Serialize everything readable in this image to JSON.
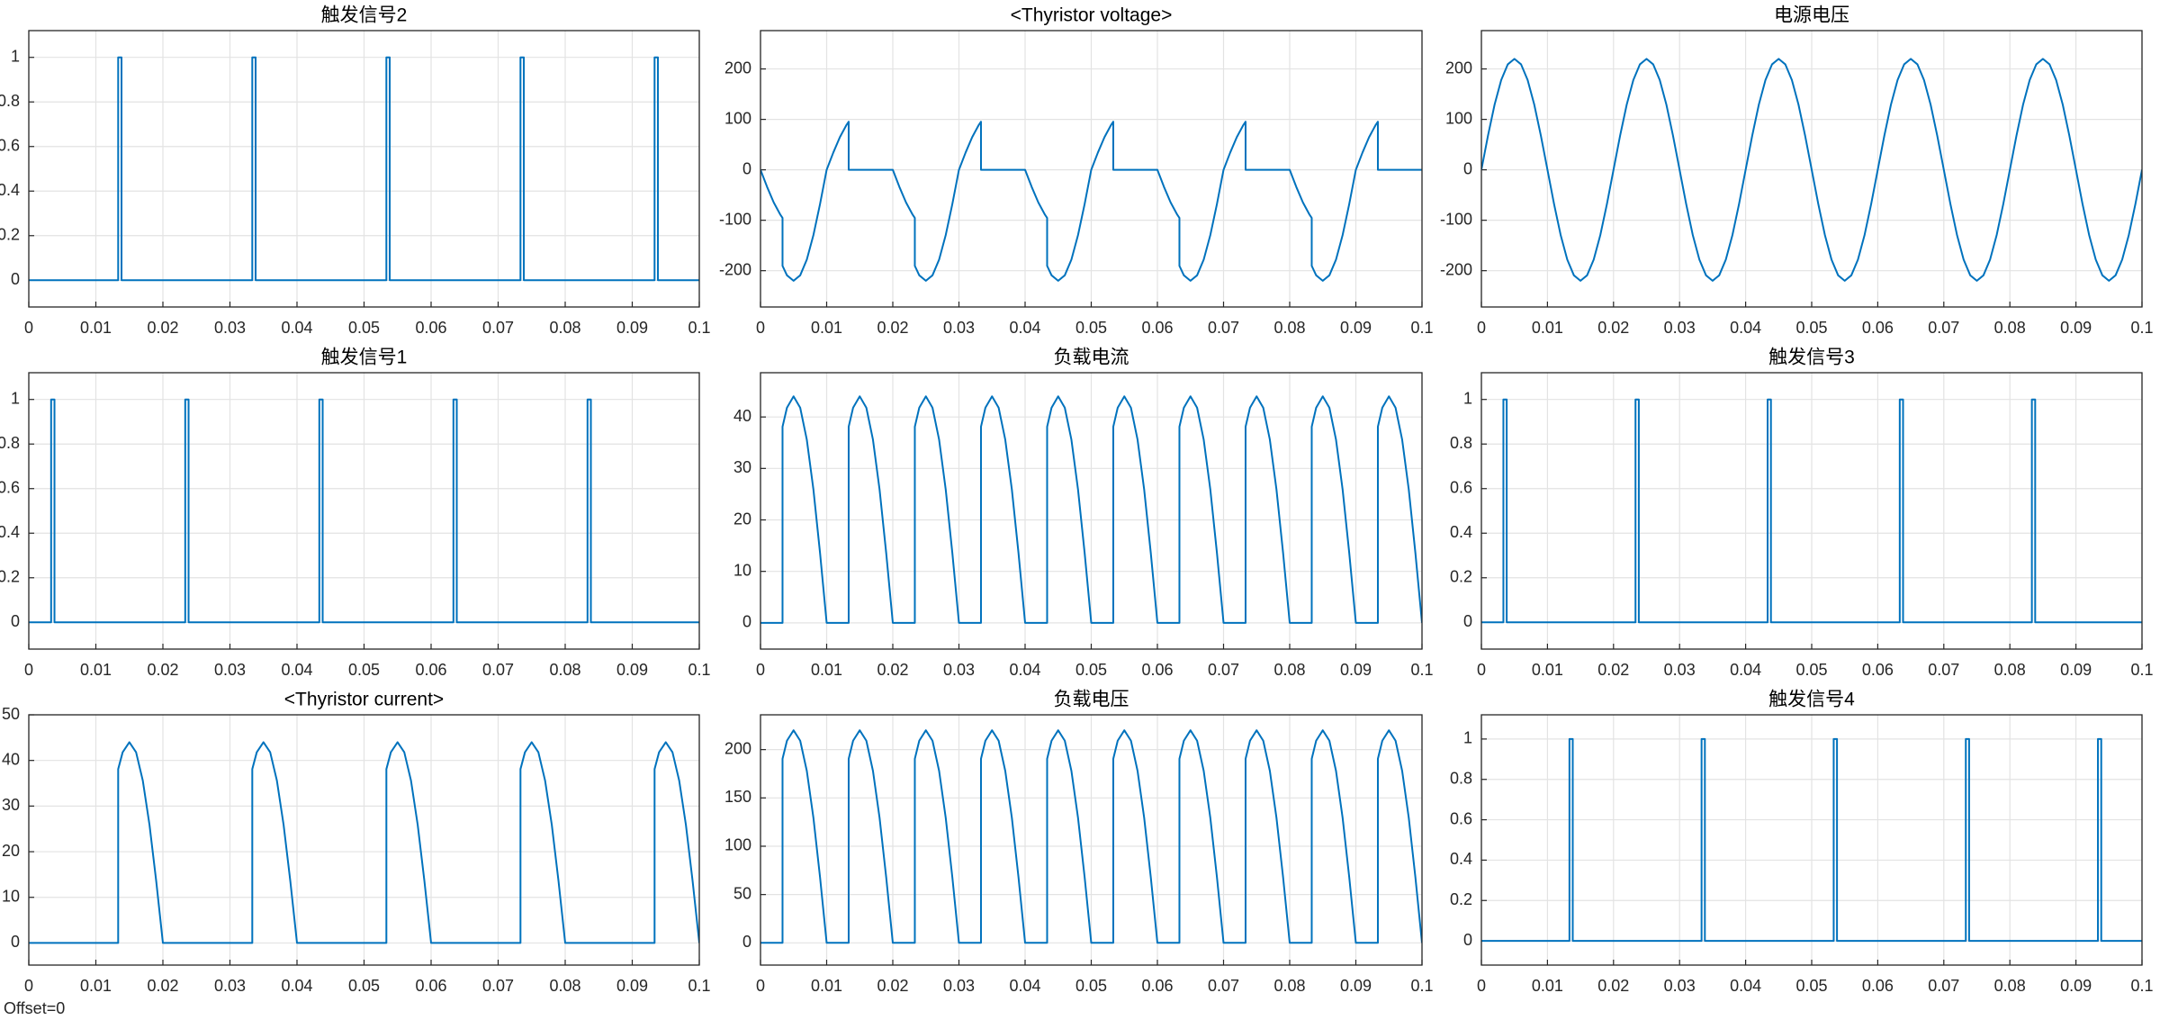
{
  "chart_data": [
    {
      "type": "line",
      "title": "触发信号2",
      "x": [
        0,
        0.01333,
        0.01333,
        0.01383,
        0.01383,
        0.03333,
        0.03333,
        0.03383,
        0.03383,
        0.05333,
        0.05333,
        0.05383,
        0.05383,
        0.07333,
        0.07333,
        0.07383,
        0.07383,
        0.09333,
        0.09333,
        0.09383,
        0.09383,
        0.1
      ],
      "values": [
        0,
        0,
        1,
        1,
        0,
        0,
        1,
        1,
        0,
        0,
        1,
        1,
        0,
        0,
        1,
        1,
        0,
        0,
        1,
        1,
        0,
        0
      ],
      "color": "#0072BD",
      "xlim": [
        0,
        0.1
      ],
      "xticks": [
        0,
        0.01,
        0.02,
        0.03,
        0.04,
        0.05,
        0.06,
        0.07,
        0.08,
        0.09,
        0.1
      ],
      "ylim": [
        -0.12,
        1.12
      ],
      "yticks": [
        0,
        0.2,
        0.4,
        0.6,
        0.8,
        1
      ],
      "grid": true
    },
    {
      "type": "line",
      "title": "<Thyristor voltage>",
      "x": [
        0,
        0.001,
        0.002,
        0.003,
        0.00333,
        0.00333,
        0.004,
        0.005,
        0.006,
        0.007,
        0.008,
        0.009,
        0.01,
        0.011,
        0.012,
        0.013,
        0.01333,
        0.01333,
        0.02,
        0.021,
        0.022,
        0.023,
        0.02333,
        0.02333,
        0.024,
        0.025,
        0.026,
        0.027,
        0.028,
        0.029,
        0.03,
        0.031,
        0.032,
        0.033,
        0.03333,
        0.03333,
        0.04,
        0.041,
        0.042,
        0.043,
        0.04333,
        0.04333,
        0.044,
        0.045,
        0.046,
        0.047,
        0.048,
        0.049,
        0.05,
        0.051,
        0.052,
        0.053,
        0.05333,
        0.05333,
        0.06,
        0.061,
        0.062,
        0.063,
        0.06333,
        0.06333,
        0.064,
        0.065,
        0.066,
        0.067,
        0.068,
        0.069,
        0.07,
        0.071,
        0.072,
        0.073,
        0.07333,
        0.07333,
        0.08,
        0.081,
        0.082,
        0.083,
        0.08333,
        0.08333,
        0.084,
        0.085,
        0.086,
        0.087,
        0.088,
        0.089,
        0.09,
        0.091,
        0.092,
        0.093,
        0.09333,
        0.09333,
        0.1
      ],
      "values": [
        0,
        -34,
        -64.7,
        -89,
        -95.3,
        -190.5,
        -209.2,
        -220,
        -209.2,
        -178,
        -129.4,
        -68,
        0,
        34,
        64.7,
        89,
        95.3,
        0,
        0,
        -34,
        -64.7,
        -89,
        -95.3,
        -190.5,
        -209.2,
        -220,
        -209.2,
        -178,
        -129.4,
        -68,
        0,
        34,
        64.7,
        89,
        95.3,
        0,
        0,
        -34,
        -64.7,
        -89,
        -95.3,
        -190.5,
        -209.2,
        -220,
        -209.2,
        -178,
        -129.4,
        -68,
        0,
        34,
        64.7,
        89,
        95.3,
        0,
        0,
        -34,
        -64.7,
        -89,
        -95.3,
        -190.5,
        -209.2,
        -220,
        -209.2,
        -178,
        -129.4,
        -68,
        0,
        34,
        64.7,
        89,
        95.3,
        0,
        0,
        -34,
        -64.7,
        -89,
        -95.3,
        -190.5,
        -209.2,
        -220,
        -209.2,
        -178,
        -129.4,
        -68,
        0,
        34,
        64.7,
        89,
        95.3,
        0,
        0
      ],
      "color": "#0072BD",
      "xlim": [
        0,
        0.1
      ],
      "xticks": [
        0,
        0.01,
        0.02,
        0.03,
        0.04,
        0.05,
        0.06,
        0.07,
        0.08,
        0.09,
        0.1
      ],
      "ylim": [
        -272,
        276
      ],
      "yticks": [
        -200,
        -100,
        0,
        100,
        200
      ],
      "grid": true
    },
    {
      "type": "line",
      "title": "电源电压",
      "x": [
        0,
        0.001,
        0.002,
        0.003,
        0.004,
        0.005,
        0.006,
        0.007,
        0.008,
        0.009,
        0.01,
        0.011,
        0.012,
        0.013,
        0.014,
        0.015,
        0.016,
        0.017,
        0.018,
        0.019,
        0.02,
        0.021,
        0.022,
        0.023,
        0.024,
        0.025,
        0.026,
        0.027,
        0.028,
        0.029,
        0.03,
        0.031,
        0.032,
        0.033,
        0.034,
        0.035,
        0.036,
        0.037,
        0.038,
        0.039,
        0.04,
        0.041,
        0.042,
        0.043,
        0.044,
        0.045,
        0.046,
        0.047,
        0.048,
        0.049,
        0.05,
        0.051,
        0.052,
        0.053,
        0.054,
        0.055,
        0.056,
        0.057,
        0.058,
        0.059,
        0.06,
        0.061,
        0.062,
        0.063,
        0.064,
        0.065,
        0.066,
        0.067,
        0.068,
        0.069,
        0.07,
        0.071,
        0.072,
        0.073,
        0.074,
        0.075,
        0.076,
        0.077,
        0.078,
        0.079,
        0.08,
        0.081,
        0.082,
        0.083,
        0.084,
        0.085,
        0.086,
        0.087,
        0.088,
        0.089,
        0.09,
        0.091,
        0.092,
        0.093,
        0.094,
        0.095,
        0.096,
        0.097,
        0.098,
        0.099,
        0.1
      ],
      "values": [
        0,
        68,
        129.4,
        178,
        209.2,
        220,
        209.2,
        178,
        129.4,
        68,
        0,
        -68,
        -129.4,
        -178,
        -209.2,
        -220,
        -209.2,
        -178,
        -129.4,
        -68,
        0,
        68,
        129.4,
        178,
        209.2,
        220,
        209.2,
        178,
        129.4,
        68,
        0,
        -68,
        -129.4,
        -178,
        -209.2,
        -220,
        -209.2,
        -178,
        -129.4,
        -68,
        0,
        68,
        129.4,
        178,
        209.2,
        220,
        209.2,
        178,
        129.4,
        68,
        0,
        -68,
        -129.4,
        -178,
        -209.2,
        -220,
        -209.2,
        -178,
        -129.4,
        -68,
        0,
        68,
        129.4,
        178,
        209.2,
        220,
        209.2,
        178,
        129.4,
        68,
        0,
        -68,
        -129.4,
        -178,
        -209.2,
        -220,
        -209.2,
        -178,
        -129.4,
        -68,
        0,
        68,
        129.4,
        178,
        209.2,
        220,
        209.2,
        178,
        129.4,
        68,
        0,
        -68,
        -129.4,
        -178,
        -209.2,
        -220,
        -209.2,
        -178,
        -129.4,
        -68,
        0
      ],
      "color": "#0072BD",
      "xlim": [
        0,
        0.1
      ],
      "xticks": [
        0,
        0.01,
        0.02,
        0.03,
        0.04,
        0.05,
        0.06,
        0.07,
        0.08,
        0.09,
        0.1
      ],
      "ylim": [
        -272,
        276
      ],
      "yticks": [
        -200,
        -100,
        0,
        100,
        200
      ],
      "grid": true
    },
    {
      "type": "line",
      "title": "触发信号1",
      "x": [
        0,
        0.00333,
        0.00333,
        0.00383,
        0.00383,
        0.02333,
        0.02333,
        0.02383,
        0.02383,
        0.04333,
        0.04333,
        0.04383,
        0.04383,
        0.06333,
        0.06333,
        0.06383,
        0.06383,
        0.08333,
        0.08333,
        0.08383,
        0.08383,
        0.1
      ],
      "values": [
        0,
        0,
        1,
        1,
        0,
        0,
        1,
        1,
        0,
        0,
        1,
        1,
        0,
        0,
        1,
        1,
        0,
        0,
        1,
        1,
        0,
        0
      ],
      "color": "#0072BD",
      "xlim": [
        0,
        0.1
      ],
      "xticks": [
        0,
        0.01,
        0.02,
        0.03,
        0.04,
        0.05,
        0.06,
        0.07,
        0.08,
        0.09,
        0.1
      ],
      "ylim": [
        -0.12,
        1.12
      ],
      "yticks": [
        0,
        0.2,
        0.4,
        0.6,
        0.8,
        1
      ],
      "grid": true
    },
    {
      "type": "line",
      "title": "负载电流",
      "x": [
        0,
        0.00333,
        0.00333,
        0.004,
        0.005,
        0.006,
        0.007,
        0.008,
        0.009,
        0.01,
        0.01333,
        0.01333,
        0.014,
        0.015,
        0.016,
        0.017,
        0.018,
        0.019,
        0.02,
        0.02333,
        0.02333,
        0.024,
        0.025,
        0.026,
        0.027,
        0.028,
        0.029,
        0.03,
        0.03333,
        0.03333,
        0.034,
        0.035,
        0.036,
        0.037,
        0.038,
        0.039,
        0.04,
        0.04333,
        0.04333,
        0.044,
        0.045,
        0.046,
        0.047,
        0.048,
        0.049,
        0.05,
        0.05333,
        0.05333,
        0.054,
        0.055,
        0.056,
        0.057,
        0.058,
        0.059,
        0.06,
        0.06333,
        0.06333,
        0.064,
        0.065,
        0.066,
        0.067,
        0.068,
        0.069,
        0.07,
        0.07333,
        0.07333,
        0.074,
        0.075,
        0.076,
        0.077,
        0.078,
        0.079,
        0.08,
        0.08333,
        0.08333,
        0.084,
        0.085,
        0.086,
        0.087,
        0.088,
        0.089,
        0.09,
        0.09333,
        0.09333,
        0.094,
        0.095,
        0.096,
        0.097,
        0.098,
        0.099,
        0.1
      ],
      "values": [
        0,
        0,
        38.1,
        41.8,
        44,
        41.8,
        35.6,
        25.9,
        13.6,
        0,
        0,
        38.1,
        41.8,
        44,
        41.8,
        35.6,
        25.9,
        13.6,
        0,
        0,
        38.1,
        41.8,
        44,
        41.8,
        35.6,
        25.9,
        13.6,
        0,
        0,
        38.1,
        41.8,
        44,
        41.8,
        35.6,
        25.9,
        13.6,
        0,
        0,
        38.1,
        41.8,
        44,
        41.8,
        35.6,
        25.9,
        13.6,
        0,
        0,
        38.1,
        41.8,
        44,
        41.8,
        35.6,
        25.9,
        13.6,
        0,
        0,
        38.1,
        41.8,
        44,
        41.8,
        35.6,
        25.9,
        13.6,
        0,
        0,
        38.1,
        41.8,
        44,
        41.8,
        35.6,
        25.9,
        13.6,
        0,
        0,
        38.1,
        41.8,
        44,
        41.8,
        35.6,
        25.9,
        13.6,
        0,
        0,
        38.1,
        41.8,
        44,
        41.8,
        35.6,
        25.9,
        13.6,
        0
      ],
      "color": "#0072BD",
      "xlim": [
        0,
        0.1
      ],
      "xticks": [
        0,
        0.01,
        0.02,
        0.03,
        0.04,
        0.05,
        0.06,
        0.07,
        0.08,
        0.09,
        0.1
      ],
      "ylim": [
        -5.1,
        48.6
      ],
      "yticks": [
        0,
        10,
        20,
        30,
        40
      ],
      "grid": true
    },
    {
      "type": "line",
      "title": "触发信号3",
      "x": [
        0,
        0.00333,
        0.00333,
        0.00383,
        0.00383,
        0.02333,
        0.02333,
        0.02383,
        0.02383,
        0.04333,
        0.04333,
        0.04383,
        0.04383,
        0.06333,
        0.06333,
        0.06383,
        0.06383,
        0.08333,
        0.08333,
        0.08383,
        0.08383,
        0.1
      ],
      "values": [
        0,
        0,
        1,
        1,
        0,
        0,
        1,
        1,
        0,
        0,
        1,
        1,
        0,
        0,
        1,
        1,
        0,
        0,
        1,
        1,
        0,
        0
      ],
      "color": "#0072BD",
      "xlim": [
        0,
        0.1
      ],
      "xticks": [
        0,
        0.01,
        0.02,
        0.03,
        0.04,
        0.05,
        0.06,
        0.07,
        0.08,
        0.09,
        0.1
      ],
      "ylim": [
        -0.12,
        1.12
      ],
      "yticks": [
        0,
        0.2,
        0.4,
        0.6,
        0.8,
        1
      ],
      "grid": true
    },
    {
      "type": "line",
      "title": "<Thyristor current>",
      "x": [
        0,
        0.01333,
        0.01333,
        0.014,
        0.015,
        0.016,
        0.017,
        0.018,
        0.019,
        0.02,
        0.03333,
        0.03333,
        0.034,
        0.035,
        0.036,
        0.037,
        0.038,
        0.039,
        0.04,
        0.05333,
        0.05333,
        0.054,
        0.055,
        0.056,
        0.057,
        0.058,
        0.059,
        0.06,
        0.07333,
        0.07333,
        0.074,
        0.075,
        0.076,
        0.077,
        0.078,
        0.079,
        0.08,
        0.09333,
        0.09333,
        0.094,
        0.095,
        0.096,
        0.097,
        0.098,
        0.099,
        0.1
      ],
      "values": [
        0,
        0,
        38.1,
        41.8,
        44,
        41.8,
        35.6,
        25.9,
        13.6,
        0,
        0,
        38.1,
        41.8,
        44,
        41.8,
        35.6,
        25.9,
        13.6,
        0,
        0,
        38.1,
        41.8,
        44,
        41.8,
        35.6,
        25.9,
        13.6,
        0,
        0,
        38.1,
        41.8,
        44,
        41.8,
        35.6,
        25.9,
        13.6,
        0,
        0,
        38.1,
        41.8,
        44,
        41.8,
        35.6,
        25.9,
        13.6,
        0
      ],
      "color": "#0072BD",
      "xlim": [
        0,
        0.1
      ],
      "xticks": [
        0,
        0.01,
        0.02,
        0.03,
        0.04,
        0.05,
        0.06,
        0.07,
        0.08,
        0.09,
        0.1
      ],
      "ylim": [
        -4.85,
        50
      ],
      "yticks": [
        0,
        10,
        20,
        30,
        40,
        50
      ],
      "grid": true
    },
    {
      "type": "line",
      "title": "负载电压",
      "x": [
        0,
        0.00333,
        0.00333,
        0.004,
        0.005,
        0.006,
        0.007,
        0.008,
        0.009,
        0.01,
        0.01333,
        0.01333,
        0.014,
        0.015,
        0.016,
        0.017,
        0.018,
        0.019,
        0.02,
        0.02333,
        0.02333,
        0.024,
        0.025,
        0.026,
        0.027,
        0.028,
        0.029,
        0.03,
        0.03333,
        0.03333,
        0.034,
        0.035,
        0.036,
        0.037,
        0.038,
        0.039,
        0.04,
        0.04333,
        0.04333,
        0.044,
        0.045,
        0.046,
        0.047,
        0.048,
        0.049,
        0.05,
        0.05333,
        0.05333,
        0.054,
        0.055,
        0.056,
        0.057,
        0.058,
        0.059,
        0.06,
        0.06333,
        0.06333,
        0.064,
        0.065,
        0.066,
        0.067,
        0.068,
        0.069,
        0.07,
        0.07333,
        0.07333,
        0.074,
        0.075,
        0.076,
        0.077,
        0.078,
        0.079,
        0.08,
        0.08333,
        0.08333,
        0.084,
        0.085,
        0.086,
        0.087,
        0.088,
        0.089,
        0.09,
        0.09333,
        0.09333,
        0.094,
        0.095,
        0.096,
        0.097,
        0.098,
        0.099,
        0.1
      ],
      "values": [
        0,
        0,
        190.5,
        209.2,
        220,
        209.2,
        178,
        129.4,
        68,
        0,
        0,
        190.5,
        209.2,
        220,
        209.2,
        178,
        129.4,
        68,
        0,
        0,
        190.5,
        209.2,
        220,
        209.2,
        178,
        129.4,
        68,
        0,
        0,
        190.5,
        209.2,
        220,
        209.2,
        178,
        129.4,
        68,
        0,
        0,
        190.5,
        209.2,
        220,
        209.2,
        178,
        129.4,
        68,
        0,
        0,
        190.5,
        209.2,
        220,
        209.2,
        178,
        129.4,
        68,
        0,
        0,
        190.5,
        209.2,
        220,
        209.2,
        178,
        129.4,
        68,
        0,
        0,
        190.5,
        209.2,
        220,
        209.2,
        178,
        129.4,
        68,
        0,
        0,
        190.5,
        209.2,
        220,
        209.2,
        178,
        129.4,
        68,
        0,
        0,
        190.5,
        209.2,
        220,
        209.2,
        178,
        129.4,
        68,
        0
      ],
      "color": "#0072BD",
      "xlim": [
        0,
        0.1
      ],
      "xticks": [
        0,
        0.01,
        0.02,
        0.03,
        0.04,
        0.05,
        0.06,
        0.07,
        0.08,
        0.09,
        0.1
      ],
      "ylim": [
        -23,
        236
      ],
      "yticks": [
        0,
        50,
        100,
        150,
        200
      ],
      "grid": true
    },
    {
      "type": "line",
      "title": "触发信号4",
      "x": [
        0,
        0.01333,
        0.01333,
        0.01383,
        0.01383,
        0.03333,
        0.03333,
        0.03383,
        0.03383,
        0.05333,
        0.05333,
        0.05383,
        0.05383,
        0.07333,
        0.07333,
        0.07383,
        0.07383,
        0.09333,
        0.09333,
        0.09383,
        0.09383,
        0.1
      ],
      "values": [
        0,
        0,
        1,
        1,
        0,
        0,
        1,
        1,
        0,
        0,
        1,
        1,
        0,
        0,
        1,
        1,
        0,
        0,
        1,
        1,
        0,
        0
      ],
      "color": "#0072BD",
      "xlim": [
        0,
        0.1
      ],
      "xticks": [
        0,
        0.01,
        0.02,
        0.03,
        0.04,
        0.05,
        0.06,
        0.07,
        0.08,
        0.09,
        0.1
      ],
      "ylim": [
        -0.12,
        1.12
      ],
      "yticks": [
        0,
        0.2,
        0.4,
        0.6,
        0.8,
        1
      ],
      "grid": true
    }
  ],
  "offset_label": "Offset=0"
}
